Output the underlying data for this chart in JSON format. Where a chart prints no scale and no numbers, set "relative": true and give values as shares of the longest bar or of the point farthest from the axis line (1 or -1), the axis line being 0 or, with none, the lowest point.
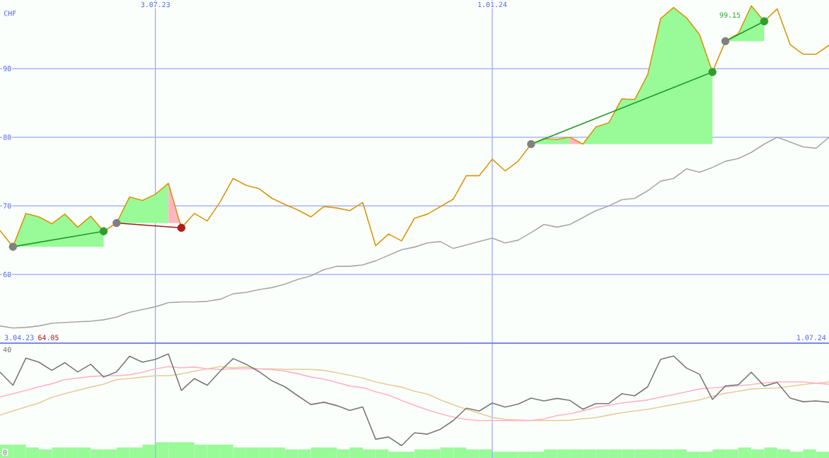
{
  "chart_data": [
    {
      "type": "line",
      "ylabel": "CHF",
      "x": [
        "2023-04-10",
        "2023-04-17",
        "2023-04-24",
        "2023-05-01",
        "2023-05-08",
        "2023-05-15",
        "2023-05-22",
        "2023-05-29",
        "2023-06-05",
        "2023-06-12",
        "2023-06-19",
        "2023-06-26",
        "2023-07-03",
        "2023-07-10",
        "2023-07-17",
        "2023-07-24",
        "2023-07-31",
        "2023-08-07",
        "2023-08-14",
        "2023-08-21",
        "2023-08-28",
        "2023-09-04",
        "2023-09-11",
        "2023-09-18",
        "2023-09-25",
        "2023-10-02",
        "2023-10-09",
        "2023-10-16",
        "2023-10-23",
        "2023-10-30",
        "2023-11-06",
        "2023-11-13",
        "2023-11-20",
        "2023-11-27",
        "2023-12-04",
        "2023-12-11",
        "2023-12-18",
        "2023-12-25",
        "2024-01-01",
        "2024-01-08",
        "2024-01-15",
        "2024-01-22",
        "2024-01-29",
        "2024-02-05",
        "2024-02-12",
        "2024-02-19",
        "2024-02-26",
        "2024-03-04",
        "2024-03-11",
        "2024-03-18",
        "2024-03-25",
        "2024-04-01",
        "2024-04-08",
        "2024-04-15",
        "2024-04-22",
        "2024-04-29",
        "2024-05-06",
        "2024-05-13",
        "2024-05-20",
        "2024-05-27",
        "2024-06-03",
        "2024-06-10",
        "2024-06-17",
        "2024-06-24",
        "2024-07-01"
      ],
      "xlim": [
        "2023-04-10",
        "2024-07-01"
      ],
      "xticks": [
        {
          "value": "2023-07-03",
          "label": "3.07.23"
        },
        {
          "value": "2024-01-01",
          "label": "1.01.24"
        }
      ],
      "ylim": [
        50,
        100
      ],
      "yticks": [
        60,
        70,
        80,
        90
      ],
      "grid": true,
      "series": [
        {
          "color": "#6cf96c",
          "x": [
            "2023-04-17",
            "2023-04-24",
            "2023-05-01",
            "2023-05-08",
            "2023-05-15",
            "2023-05-22",
            "2023-05-29",
            "2023-06-05"
          ],
          "values": [
            null,
            null,
            null,
            null,
            null,
            null,
            null,
            null
          ],
          "lower": [
            64.05,
            64.05,
            64.05,
            64.05,
            64.05,
            64.05,
            64.05,
            64.05
          ],
          "upper": [
            64.05,
            68.9,
            68.4,
            67.4,
            68.8,
            66.9,
            68.5,
            66.3
          ]
        },
        {
          "color": "#6cf96c",
          "x": [
            "2023-06-12",
            "2023-06-19",
            "2023-06-26",
            "2023-07-03",
            "2023-07-10"
          ],
          "values": [
            null,
            null,
            null,
            null,
            null
          ],
          "lower": [
            67.5,
            67.5,
            67.5,
            67.5,
            67.5
          ],
          "upper": [
            67.5,
            71.3,
            70.8,
            71.7,
            73.3
          ]
        },
        {
          "color": "#ff97a6",
          "x": [
            "2023-07-10",
            "2023-07-17"
          ],
          "values": [
            null,
            null
          ],
          "lower": [
            67.5,
            67.5
          ],
          "upper": [
            73.3,
            66.8
          ]
        },
        {
          "color": "#6cf96c",
          "x": [
            "2024-01-22",
            "2024-01-29",
            "2024-02-05",
            "2024-02-12"
          ],
          "values": [
            null,
            null,
            null,
            null
          ],
          "lower": [
            79.0,
            79.0,
            79.0,
            79.0
          ],
          "upper": [
            79.0,
            79.8,
            79.7,
            80.0
          ]
        },
        {
          "color": "#ff97a6",
          "x": [
            "2024-02-12",
            "2024-02-19"
          ],
          "values": [
            null,
            null
          ],
          "lower": [
            79.0,
            79.0
          ],
          "upper": [
            80.0,
            79.0
          ]
        },
        {
          "color": "#6cf96c",
          "x": [
            "2024-02-19",
            "2024-02-26",
            "2024-03-04",
            "2024-03-11",
            "2024-03-18",
            "2024-03-25",
            "2024-04-01",
            "2024-04-08",
            "2024-04-15",
            "2024-04-22",
            "2024-04-29"
          ],
          "values": [
            null,
            null,
            null,
            null,
            null,
            null,
            null,
            null,
            null,
            null,
            null
          ],
          "lower": [
            79.0,
            79.0,
            79.0,
            79.0,
            79.0,
            79.0,
            79.0,
            79.0,
            79.0,
            79.0,
            79.0
          ],
          "upper": [
            79.0,
            81.5,
            82.1,
            85.6,
            85.5,
            89.1,
            97.3,
            98.9,
            97.4,
            95.0,
            89.5
          ]
        },
        {
          "color": "#6cf96c",
          "x": [
            "2024-05-06",
            "2024-05-13",
            "2024-05-20",
            "2024-05-27"
          ],
          "values": [
            null,
            null,
            null,
            null
          ],
          "lower": [
            94.0,
            94.0,
            94.0,
            94.0
          ],
          "upper": [
            94.0,
            95.1,
            99.15,
            96.9
          ]
        },
        {
          "color": "#a8a8a8",
          "values": [
            52.5,
            52.2,
            52.3,
            52.5,
            52.9,
            53.0,
            53.1,
            53.2,
            53.4,
            53.8,
            54.5,
            54.9,
            55.3,
            55.9,
            56.0,
            56.0,
            56.1,
            56.4,
            57.2,
            57.4,
            57.8,
            58.1,
            58.6,
            59.3,
            59.8,
            60.7,
            61.2,
            61.2,
            61.4,
            62.0,
            62.8,
            63.6,
            64.0,
            64.6,
            64.8,
            63.8,
            64.3,
            64.8,
            65.3,
            64.6,
            65.0,
            66.1,
            67.3,
            66.9,
            67.3,
            68.3,
            69.3,
            70.0,
            70.9,
            71.1,
            72.2,
            73.6,
            74.0,
            75.4,
            74.9,
            75.6,
            76.5,
            76.9,
            77.8,
            79.0,
            80.0,
            79.3,
            78.6,
            78.4,
            80.0
          ]
        },
        {
          "color": "#d8960c",
          "values": [
            66.4,
            64.05,
            68.9,
            68.4,
            67.4,
            68.8,
            66.9,
            68.5,
            66.3,
            67.5,
            71.3,
            70.8,
            71.7,
            73.3,
            66.8,
            68.9,
            67.8,
            70.6,
            74.0,
            73.0,
            72.5,
            71.1,
            70.2,
            69.4,
            68.4,
            69.9,
            69.7,
            69.3,
            70.5,
            64.2,
            65.9,
            64.9,
            68.2,
            68.8,
            69.9,
            71.0,
            74.4,
            74.4,
            76.8,
            75.1,
            76.5,
            79.0,
            79.8,
            79.7,
            80.0,
            79.0,
            81.5,
            82.1,
            85.6,
            85.5,
            89.1,
            97.3,
            98.9,
            97.4,
            95.0,
            89.5,
            94.0,
            95.1,
            99.15,
            96.9,
            98.7,
            93.5,
            92.1,
            92.1,
            93.4
          ]
        },
        {
          "color": "#22992a",
          "x": [
            "2023-04-17",
            "2023-06-05"
          ],
          "values": [
            64.05,
            66.3
          ]
        },
        {
          "color": "#991c1c",
          "x": [
            "2023-06-12",
            "2023-07-17"
          ],
          "values": [
            67.5,
            66.8
          ]
        },
        {
          "color": "#22992a",
          "x": [
            "2024-01-22",
            "2024-04-29"
          ],
          "values": [
            79.0,
            89.5
          ]
        },
        {
          "color": "#22992a",
          "x": [
            "2024-05-06",
            "2024-05-27"
          ],
          "values": [
            94.0,
            96.9
          ]
        },
        {
          "type": "scatter",
          "marker": "circle",
          "x": [
            "2023-04-17",
            "2023-06-05",
            "2023-06-12",
            "2023-07-17",
            "2024-01-22",
            "2024-04-29",
            "2024-05-06",
            "2024-05-27"
          ],
          "values": [
            64.05,
            66.3,
            67.5,
            66.8,
            79.0,
            89.5,
            94.0,
            96.9
          ],
          "colors": [
            "#808080",
            "#2e9e2e",
            "#808080",
            "#b01c1c",
            "#808080",
            "#2e9e2e",
            "#808080",
            "#2e9e2e"
          ]
        }
      ],
      "annotations": [
        "3.04.23",
        "64.05",
        "1.07.24",
        {
          "text": "99.15",
          "x": "2024-05-20",
          "y": 99.15
        }
      ]
    },
    {
      "type": "line",
      "x": [
        "2023-04-10",
        "2023-04-17",
        "2023-04-24",
        "2023-05-01",
        "2023-05-08",
        "2023-05-15",
        "2023-05-22",
        "2023-05-29",
        "2023-06-05",
        "2023-06-12",
        "2023-06-19",
        "2023-06-26",
        "2023-07-03",
        "2023-07-10",
        "2023-07-17",
        "2023-07-24",
        "2023-07-31",
        "2023-08-07",
        "2023-08-14",
        "2023-08-21",
        "2023-08-28",
        "2023-09-04",
        "2023-09-11",
        "2023-09-18",
        "2023-09-25",
        "2023-10-02",
        "2023-10-09",
        "2023-10-16",
        "2023-10-23",
        "2023-10-30",
        "2023-11-06",
        "2023-11-13",
        "2023-11-20",
        "2023-11-27",
        "2023-12-04",
        "2023-12-11",
        "2023-12-18",
        "2023-12-25",
        "2024-01-01",
        "2024-01-08",
        "2024-01-15",
        "2024-01-22",
        "2024-01-29",
        "2024-02-05",
        "2024-02-12",
        "2024-02-19",
        "2024-02-26",
        "2024-03-04",
        "2024-03-11",
        "2024-03-18",
        "2024-03-25",
        "2024-04-01",
        "2024-04-08",
        "2024-04-15",
        "2024-04-22",
        "2024-04-29",
        "2024-05-06",
        "2024-05-13",
        "2024-05-20",
        "2024-05-27",
        "2024-06-03",
        "2024-06-10",
        "2024-06-17",
        "2024-06-24",
        "2024-07-01"
      ],
      "xlim": [
        "2023-04-10",
        "2024-07-01"
      ],
      "xticks": [
        {
          "value": "2023-07-03",
          "label": null
        },
        {
          "value": "2024-01-01",
          "label": null
        }
      ],
      "ylim": [
        -2.2,
        42.5
      ],
      "yticks": [
        0,
        40
      ],
      "grid": "x",
      "tick_labels": "y",
      "series": [
        {
          "color": "#e6cc9c",
          "values": [
            14.5,
            16.1,
            17.7,
            19.2,
            21.4,
            22.8,
            24.1,
            25.4,
            26.5,
            28.3,
            28.7,
            29.3,
            29.8,
            29.8,
            30.5,
            31.6,
            32.5,
            33.4,
            32.9,
            33.2,
            32.5,
            32.5,
            32.3,
            32.3,
            32.3,
            31.9,
            31.0,
            30.0,
            28.9,
            27.4,
            26.3,
            25.4,
            23.8,
            22.7,
            20.4,
            18.5,
            16.8,
            15.2,
            13.6,
            12.8,
            12.6,
            12.4,
            12.4,
            12.4,
            12.5,
            13.1,
            13.5,
            14.5,
            15.4,
            16.1,
            16.7,
            17.7,
            18.6,
            19.5,
            20.4,
            21.8,
            23.0,
            23.8,
            24.7,
            24.9,
            25.0,
            25.7,
            26.4,
            26.9,
            27.4
          ]
        },
        {
          "color": "#ffb3c6",
          "values": [
            21.6,
            22.8,
            24.1,
            25.5,
            26.7,
            28.3,
            28.9,
            29.5,
            29.8,
            29.8,
            30.2,
            31.2,
            32.5,
            33.4,
            32.9,
            33.2,
            32.5,
            32.3,
            32.5,
            32.5,
            32.5,
            32.2,
            31.6,
            30.6,
            29.3,
            28.5,
            27.2,
            25.8,
            25.2,
            23.6,
            22.3,
            20.2,
            18.3,
            16.5,
            15.0,
            13.7,
            12.8,
            12.4,
            12.4,
            12.4,
            12.4,
            12.4,
            13.0,
            14.3,
            15.0,
            16.2,
            17.5,
            18.3,
            19.2,
            19.8,
            20.4,
            21.5,
            22.5,
            23.6,
            24.7,
            25.1,
            25.5,
            25.9,
            26.4,
            27.0,
            27.4,
            27.4,
            27.4,
            26.9,
            26.5
          ]
        },
        {
          "color": "#787878",
          "values": [
            31.2,
            26.1,
            36.7,
            35.1,
            31.9,
            34.9,
            31.3,
            34.3,
            29.3,
            31.3,
            37.4,
            35.1,
            36.2,
            38.3,
            24.1,
            28.7,
            26.1,
            31.6,
            36.5,
            34.3,
            31.4,
            27.8,
            25.5,
            22.0,
            18.6,
            19.5,
            18.2,
            16.3,
            17.7,
            5.1,
            6.0,
            2.6,
            7.6,
            7.1,
            9.0,
            12.4,
            17.2,
            16.1,
            19.2,
            17.6,
            18.8,
            21.1,
            20.0,
            21.0,
            20.2,
            16.8,
            19.0,
            19.0,
            22.8,
            22.0,
            25.5,
            36.2,
            37.5,
            32.8,
            30.4,
            20.6,
            25.8,
            26.3,
            31.2,
            25.8,
            27.2,
            21.1,
            19.7,
            20.0,
            19.5
          ]
        }
      ]
    },
    {
      "type": "bar",
      "relative": true,
      "color": "#98fb98",
      "categories": [
        null,
        null,
        null,
        null,
        null,
        null,
        null,
        null,
        null,
        null,
        null,
        null,
        null,
        null,
        null,
        null,
        null,
        null,
        null,
        null,
        null,
        null,
        null,
        null,
        null,
        null,
        null,
        null,
        null,
        null,
        null,
        null,
        null,
        null,
        null,
        null,
        null,
        null,
        null,
        null,
        null,
        null,
        null,
        null,
        null,
        null,
        null,
        null,
        null,
        null,
        null,
        null,
        null,
        null,
        null,
        null,
        null,
        null,
        null,
        null,
        null,
        null,
        null,
        null
      ],
      "values": [
        0.85,
        0.85,
        0.67,
        0.55,
        0.67,
        0.67,
        0.67,
        0.55,
        0.55,
        0.67,
        0.67,
        0.85,
        1,
        1,
        1,
        0.85,
        0.85,
        0.85,
        0.67,
        0.67,
        0.67,
        0.67,
        0.55,
        0.55,
        0.67,
        0.67,
        0.55,
        0.67,
        0.55,
        0.55,
        0.4,
        0.4,
        0.55,
        0.55,
        0.67,
        0.67,
        0.55,
        0.55,
        0.4,
        0.4,
        0.4,
        0.4,
        0.55,
        0.55,
        0.55,
        0.55,
        0.55,
        0.55,
        0.55,
        0.55,
        0.55,
        0.55,
        0.55,
        0.4,
        0.4,
        0.55,
        0.55,
        0.67,
        0.55,
        0.67,
        0.55,
        0.4,
        0.55,
        0.4
      ]
    }
  ]
}
